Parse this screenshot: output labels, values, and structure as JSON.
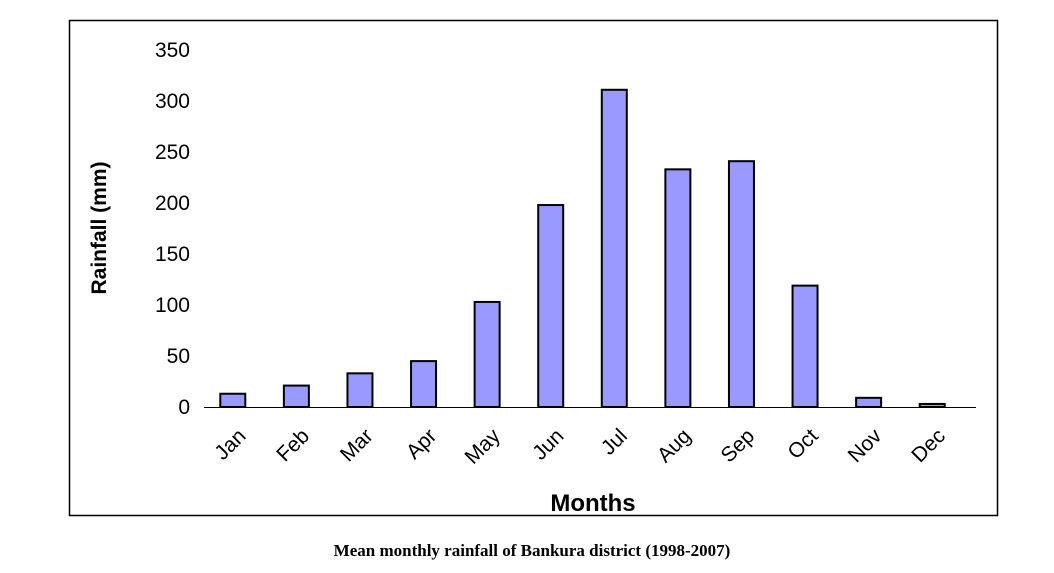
{
  "caption": "Mean monthly rainfall of Bankura district (1998-2007)",
  "chart_data": {
    "type": "bar",
    "categories": [
      "Jan",
      "Feb",
      "Mar",
      "Apr",
      "May",
      "Jun",
      "Jul",
      "Aug",
      "Sep",
      "Oct",
      "Nov",
      "Dec"
    ],
    "values": [
      13,
      21,
      33,
      45,
      103,
      198,
      311,
      233,
      241,
      119,
      9,
      3
    ],
    "xlabel": "Months",
    "ylabel": "Rainfall (mm)",
    "ylim": [
      0,
      350
    ],
    "yticks": [
      "0",
      "50",
      "100",
      "150",
      "200",
      "250",
      "300",
      "350"
    ],
    "bar_color": "#9999ff",
    "bar_outline": "#000000",
    "grid": false,
    "legend": "none"
  }
}
